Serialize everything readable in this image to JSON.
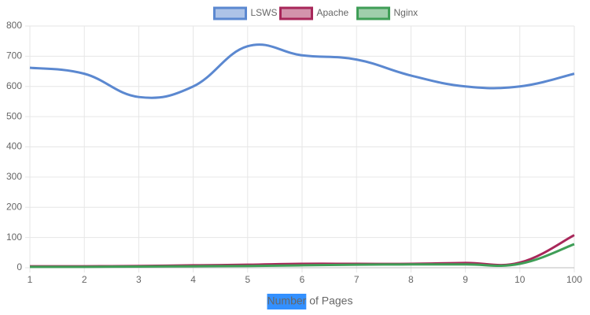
{
  "chart_data": {
    "type": "line",
    "xlabel": "Number of Pages",
    "categories": [
      "1",
      "2",
      "3",
      "4",
      "5",
      "6",
      "7",
      "8",
      "9",
      "10",
      "100"
    ],
    "series": [
      {
        "name": "LSWS",
        "color": "#5b88d0",
        "values": [
          662,
          642,
          565,
          600,
          733,
          703,
          689,
          636,
          600,
          600,
          642
        ]
      },
      {
        "name": "Apache",
        "color": "#a8275a",
        "values": [
          5,
          5,
          6,
          8,
          10,
          13,
          13,
          13,
          16,
          17,
          108
        ]
      },
      {
        "name": "Nginx",
        "color": "#3f9e57",
        "values": [
          3,
          3,
          4,
          5,
          6,
          8,
          10,
          11,
          11,
          13,
          78
        ]
      }
    ],
    "ylim": [
      0,
      800
    ],
    "yticks": [
      0,
      100,
      200,
      300,
      400,
      500,
      600,
      700,
      800
    ],
    "grid": true,
    "legend": "top"
  }
}
